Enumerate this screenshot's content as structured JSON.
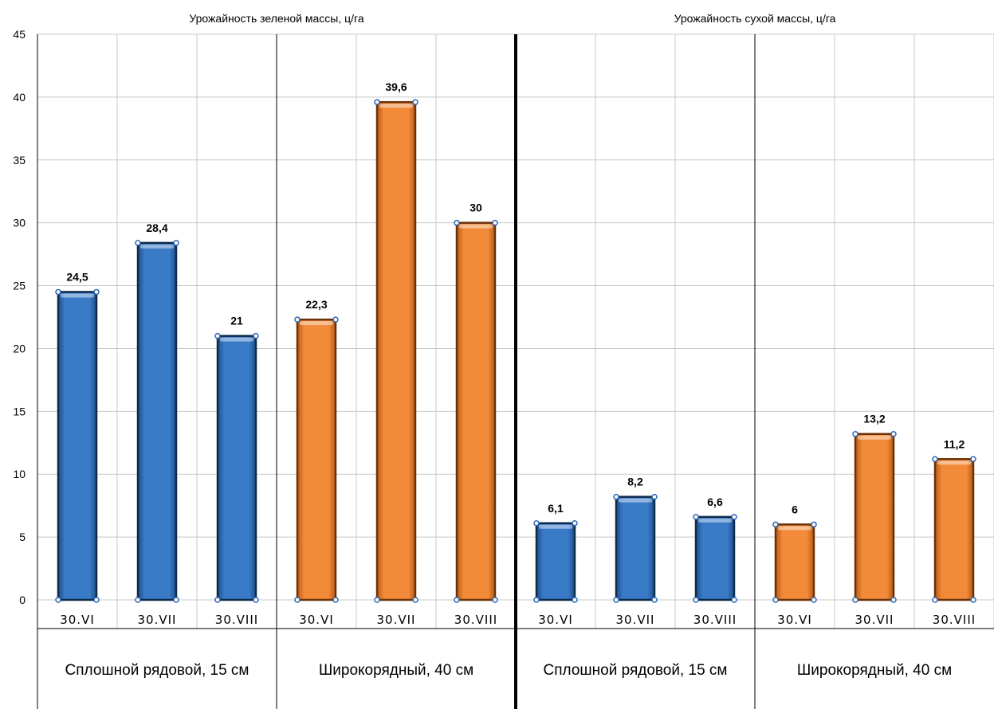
{
  "chart_data": {
    "type": "bar",
    "ylim": [
      0,
      45
    ],
    "y_ticks": [
      "0",
      "5",
      "10",
      "15",
      "20",
      "25",
      "30",
      "35",
      "40",
      "45"
    ],
    "grid": true,
    "colors": {
      "blue": "#3a7bc8",
      "orange": "#f28a3a"
    },
    "panels": [
      {
        "title": "Урожайность зеленой массы, ц/га",
        "groups": [
          {
            "label": "Сплошной рядовой, 15 см",
            "color": "blue",
            "categories": [
              "30.VI",
              "30.VII",
              "30.VIII"
            ],
            "values": [
              24.5,
              28.4,
              21
            ],
            "value_labels": [
              "24,5",
              "28,4",
              "21"
            ]
          },
          {
            "label": "Широкорядный, 40 см",
            "color": "orange",
            "categories": [
              "30.VI",
              "30.VII",
              "30.VIII"
            ],
            "values": [
              22.3,
              39.6,
              30
            ],
            "value_labels": [
              "22,3",
              "39,6",
              "30"
            ]
          }
        ]
      },
      {
        "title": "Урожайность сухой массы, ц/га",
        "groups": [
          {
            "label": "Сплошной рядовой, 15 см",
            "color": "blue",
            "categories": [
              "30.VI",
              "30.VII",
              "30.VIII"
            ],
            "values": [
              6.1,
              8.2,
              6.6
            ],
            "value_labels": [
              "6,1",
              "8,2",
              "6,6"
            ]
          },
          {
            "label": "Широкорядный, 40 см",
            "color": "orange",
            "categories": [
              "30.VI",
              "30.VII",
              "30.VIII"
            ],
            "values": [
              6,
              13.2,
              11.2
            ],
            "value_labels": [
              "6",
              "13,2",
              "11,2"
            ]
          }
        ]
      }
    ]
  }
}
